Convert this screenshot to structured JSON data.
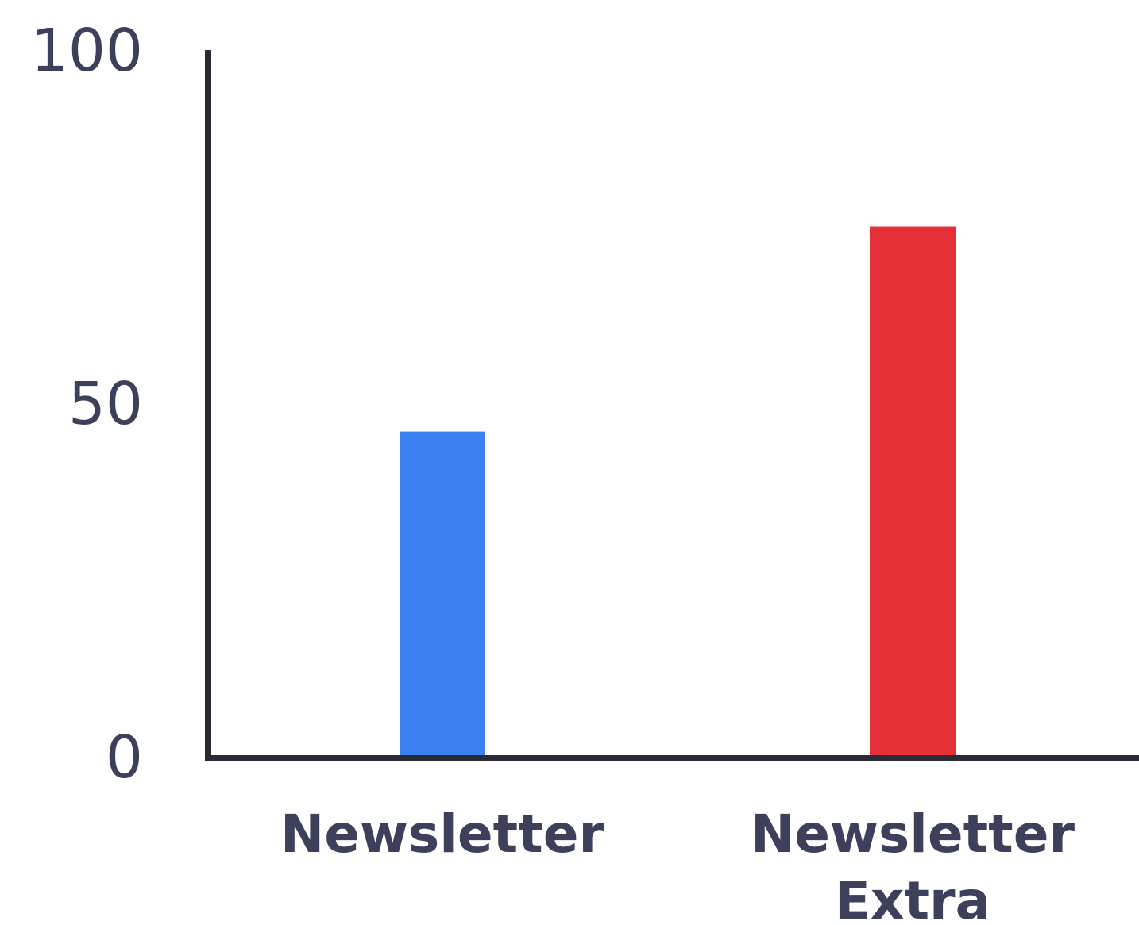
{
  "chart_data": {
    "type": "bar",
    "categories": [
      [
        "Newsletter"
      ],
      [
        "Newsletter",
        "Extra"
      ]
    ],
    "values": [
      46,
      75
    ],
    "bar_colors": [
      "#3b82f0",
      "#e53038"
    ],
    "ylim": [
      0,
      100
    ],
    "yticks": [
      "0",
      "50",
      "100"
    ],
    "title": "",
    "xlabel": "",
    "ylabel": "",
    "grid": false,
    "legend": "none"
  },
  "colors": {
    "axis": "#2a2a35",
    "text": "#3d405b"
  }
}
